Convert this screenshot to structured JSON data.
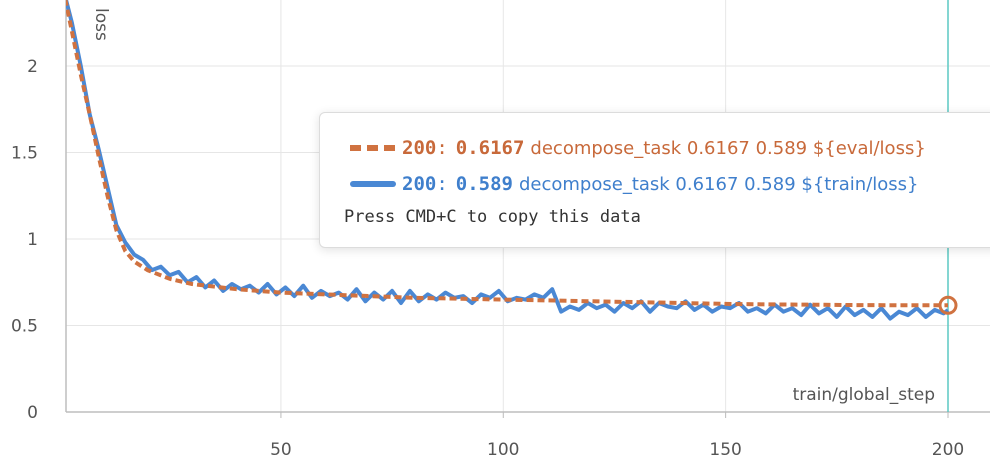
{
  "chart_data": {
    "type": "line",
    "xlabel": "train/global_step",
    "ylabel": "loss",
    "xlim": [
      1,
      200
    ],
    "ylim": [
      0,
      2.35
    ],
    "x_ticks": [
      50,
      100,
      150,
      200
    ],
    "y_ticks": [
      0,
      0.5,
      1,
      1.5,
      2
    ],
    "x_tick_labels": [
      "50",
      "100",
      "150",
      "200"
    ],
    "y_tick_labels": [
      "0",
      "0.5",
      "1",
      "1.5",
      "2"
    ],
    "grid": true,
    "series": [
      {
        "name": "decompose_task 0.6167 0.589 ${eval/loss}",
        "style": "dashed",
        "color": "#d07240",
        "x": [
          1,
          3,
          5,
          7,
          9,
          11,
          13,
          15,
          17,
          20,
          25,
          30,
          40,
          50,
          60,
          70,
          80,
          90,
          100,
          110,
          120,
          130,
          140,
          150,
          160,
          170,
          180,
          190,
          200
        ],
        "values": [
          2.45,
          2.2,
          1.95,
          1.72,
          1.48,
          1.25,
          1.05,
          0.93,
          0.87,
          0.82,
          0.77,
          0.74,
          0.71,
          0.69,
          0.68,
          0.67,
          0.66,
          0.655,
          0.65,
          0.645,
          0.64,
          0.635,
          0.63,
          0.625,
          0.622,
          0.62,
          0.618,
          0.617,
          0.6167
        ]
      },
      {
        "name": "decompose_task 0.6167 0.589 ${train/loss}",
        "style": "solid",
        "color": "#4a88d4",
        "x": [
          1,
          3,
          5,
          7,
          9,
          11,
          13,
          15,
          17,
          19,
          21,
          23,
          25,
          27,
          29,
          31,
          33,
          35,
          37,
          39,
          41,
          43,
          45,
          47,
          49,
          51,
          53,
          55,
          57,
          59,
          61,
          63,
          65,
          67,
          69,
          71,
          73,
          75,
          77,
          79,
          81,
          83,
          85,
          87,
          89,
          91,
          93,
          95,
          97,
          99,
          101,
          103,
          105,
          107,
          109,
          111,
          113,
          115,
          117,
          119,
          121,
          123,
          125,
          127,
          129,
          131,
          133,
          135,
          137,
          139,
          141,
          143,
          145,
          147,
          149,
          151,
          153,
          155,
          157,
          159,
          161,
          163,
          165,
          167,
          169,
          171,
          173,
          175,
          177,
          179,
          181,
          183,
          185,
          187,
          189,
          191,
          193,
          195,
          197,
          199,
          200
        ],
        "values": [
          2.45,
          2.25,
          2.0,
          1.72,
          1.52,
          1.3,
          1.08,
          0.98,
          0.91,
          0.88,
          0.82,
          0.84,
          0.79,
          0.81,
          0.75,
          0.78,
          0.72,
          0.76,
          0.7,
          0.74,
          0.71,
          0.73,
          0.69,
          0.74,
          0.68,
          0.72,
          0.67,
          0.73,
          0.66,
          0.7,
          0.67,
          0.69,
          0.65,
          0.71,
          0.64,
          0.69,
          0.65,
          0.7,
          0.63,
          0.7,
          0.64,
          0.68,
          0.65,
          0.69,
          0.66,
          0.67,
          0.63,
          0.68,
          0.66,
          0.7,
          0.64,
          0.66,
          0.65,
          0.68,
          0.66,
          0.71,
          0.58,
          0.61,
          0.59,
          0.63,
          0.6,
          0.62,
          0.58,
          0.63,
          0.6,
          0.64,
          0.58,
          0.63,
          0.61,
          0.6,
          0.64,
          0.59,
          0.62,
          0.58,
          0.61,
          0.6,
          0.63,
          0.58,
          0.6,
          0.57,
          0.62,
          0.58,
          0.6,
          0.56,
          0.62,
          0.57,
          0.6,
          0.55,
          0.61,
          0.56,
          0.59,
          0.55,
          0.6,
          0.54,
          0.58,
          0.56,
          0.6,
          0.55,
          0.59,
          0.57,
          0.589
        ]
      }
    ],
    "hover_x": 200,
    "hover_color": "#5cc9c3"
  },
  "tooltip": {
    "rows": [
      {
        "step": "200",
        "sep": ":",
        "value": "0.6167",
        "label": "decompose_task 0.6167 0.589 ${eval/loss}"
      },
      {
        "step": "200",
        "sep": ":",
        "value": "0.589",
        "label": "decompose_task 0.6167 0.589 ${train/loss}"
      }
    ],
    "copy_hint": "Press CMD+C to copy this data"
  }
}
